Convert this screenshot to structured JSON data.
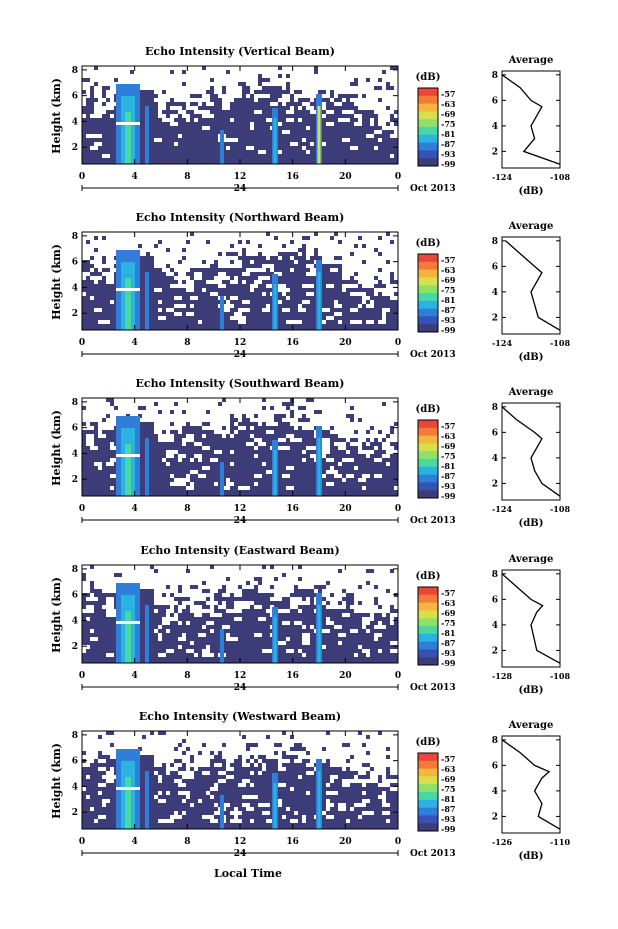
{
  "colors": {
    "field": "#3c3d78",
    "clear": "#ffffff"
  },
  "colorbar": {
    "unit": "(dB)",
    "ticks": [
      "-57",
      "-63",
      "-69",
      "-75",
      "-81",
      "-87",
      "-93",
      "-99"
    ],
    "colors": [
      "#e8473a",
      "#f47a38",
      "#f5b43d",
      "#d7e04a",
      "#8fe06a",
      "#49d7a6",
      "#2ab3e0",
      "#2f7fd8",
      "#3652b5",
      "#3c3d78"
    ]
  },
  "x_axis": {
    "ticks": [
      "0",
      "4",
      "8",
      "12",
      "16",
      "20",
      "0"
    ],
    "day": "24",
    "month_label": "Oct 2013",
    "xlabel": "Local Time"
  },
  "chart_data": [
    {
      "type": "heatmap",
      "title": "Echo Intensity (Vertical Beam)",
      "ylabel": "Height (km)",
      "y_ticks": [
        "2",
        "4",
        "6",
        "8"
      ],
      "xlim": [
        0,
        24
      ],
      "ylim": [
        0.7,
        8.3
      ],
      "profile": {
        "title": "Average",
        "xlabel": "(dB)",
        "x_ticks": [
          "-124",
          "-108"
        ],
        "xlim": [
          -124,
          -108
        ],
        "y_ticks": [
          "2",
          "4",
          "6",
          "8"
        ],
        "heights": [
          1,
          2,
          3,
          4,
          5,
          5.5,
          6,
          7,
          8
        ],
        "values": [
          -108,
          -118,
          -115,
          -116,
          -114,
          -113,
          -116,
          -119,
          -124
        ]
      }
    },
    {
      "type": "heatmap",
      "title": "Echo Intensity (Northward Beam)",
      "ylabel": "Height (km)",
      "y_ticks": [
        "2",
        "4",
        "6",
        "8"
      ],
      "xlim": [
        0,
        24
      ],
      "ylim": [
        0.7,
        8.3
      ],
      "profile": {
        "title": "Average",
        "xlabel": "(dB)",
        "x_ticks": [
          "-124",
          "-108"
        ],
        "xlim": [
          -124,
          -108
        ],
        "y_ticks": [
          "2",
          "4",
          "6",
          "8"
        ],
        "heights": [
          1,
          2,
          3,
          4,
          5,
          5.5,
          6,
          7,
          8
        ],
        "values": [
          -108,
          -114,
          -115,
          -116,
          -114,
          -113,
          -115,
          -119,
          -123
        ]
      }
    },
    {
      "type": "heatmap",
      "title": "Echo Intensity (Southward Beam)",
      "ylabel": "Height (km)",
      "y_ticks": [
        "2",
        "4",
        "6",
        "8"
      ],
      "xlim": [
        0,
        24
      ],
      "ylim": [
        0.7,
        8.3
      ],
      "profile": {
        "title": "Average",
        "xlabel": "(dB)",
        "x_ticks": [
          "-124",
          "-108"
        ],
        "xlim": [
          -124,
          -108
        ],
        "y_ticks": [
          "2",
          "4",
          "6",
          "8"
        ],
        "heights": [
          1,
          2,
          3,
          4,
          5,
          5.5,
          6,
          7,
          8
        ],
        "values": [
          -108,
          -113,
          -115,
          -116,
          -114,
          -113,
          -115,
          -120,
          -124
        ]
      }
    },
    {
      "type": "heatmap",
      "title": "Echo Intensity (Eastward Beam)",
      "ylabel": "Height (km)",
      "y_ticks": [
        "2",
        "4",
        "6",
        "8"
      ],
      "xlim": [
        0,
        24
      ],
      "ylim": [
        0.7,
        8.3
      ],
      "profile": {
        "title": "Average",
        "xlabel": "(dB)",
        "x_ticks": [
          "-128",
          "-108"
        ],
        "xlim": [
          -128,
          -108
        ],
        "y_ticks": [
          "2",
          "4",
          "6",
          "8"
        ],
        "heights": [
          1,
          2,
          3,
          4,
          5,
          5.5,
          6,
          7,
          8
        ],
        "values": [
          -108,
          -116,
          -117,
          -118,
          -116,
          -114,
          -118,
          -123,
          -128
        ]
      }
    },
    {
      "type": "heatmap",
      "title": "Echo Intensity (Westward Beam)",
      "ylabel": "Height (km)",
      "y_ticks": [
        "2",
        "4",
        "6",
        "8"
      ],
      "xlim": [
        0,
        24
      ],
      "ylim": [
        0.7,
        8.3
      ],
      "profile": {
        "title": "Average",
        "xlabel": "(dB)",
        "x_ticks": [
          "-126",
          "-110"
        ],
        "xlim": [
          -126,
          -110
        ],
        "y_ticks": [
          "2",
          "4",
          "6",
          "8"
        ],
        "heights": [
          1,
          2,
          3,
          4,
          5,
          5.5,
          6,
          7,
          8
        ],
        "values": [
          -110,
          -116,
          -115,
          -117,
          -115,
          -113,
          -117,
          -121,
          -126
        ]
      }
    }
  ]
}
